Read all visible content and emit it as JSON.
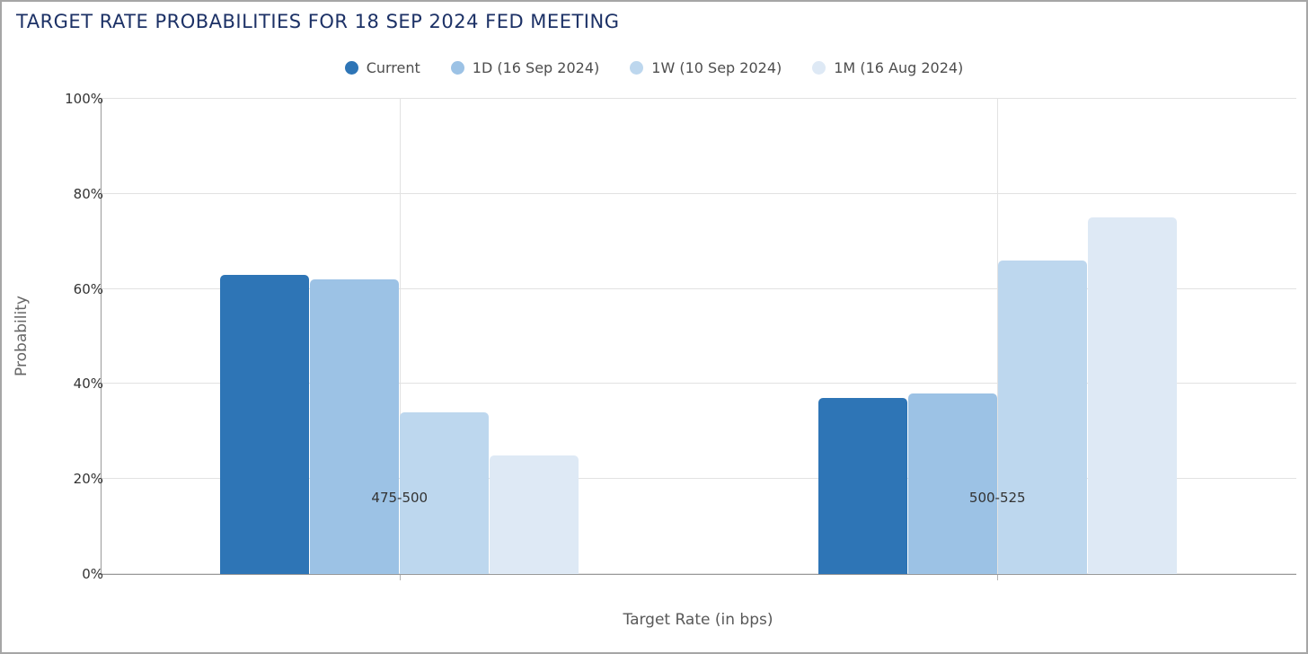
{
  "title": "TARGET RATE PROBABILITIES FOR 18 SEP 2024 FED MEETING",
  "chart_data": {
    "type": "bar",
    "title": "TARGET RATE PROBABILITIES FOR 18 SEP 2024 FED MEETING",
    "categories": [
      "475-500",
      "500-525"
    ],
    "series": [
      {
        "name": "Current",
        "color": "#2E75B6",
        "values": [
          63,
          37
        ]
      },
      {
        "name": "1D (16 Sep 2024)",
        "color": "#9CC2E5",
        "values": [
          62,
          38
        ]
      },
      {
        "name": "1W (10 Sep 2024)",
        "color": "#BDD7EE",
        "values": [
          34,
          66
        ]
      },
      {
        "name": "1M (16 Aug 2024)",
        "color": "#DEE9F5",
        "values": [
          25,
          75
        ]
      }
    ],
    "xlabel": "Target Rate (in bps)",
    "ylabel": "Probability",
    "ylim": [
      0,
      100
    ],
    "ytick_values": [
      0,
      20,
      40,
      60,
      80,
      100
    ],
    "ytick_labels": [
      "0%",
      "20%",
      "40%",
      "60%",
      "80%",
      "100%"
    ],
    "grid": true,
    "legend_position": "top-center"
  },
  "colors": {
    "title_text": "#1c3166",
    "legend_text": "#4d4d4d",
    "axis_tick_text": "#333333",
    "axis_title_text": "#595959",
    "gridline": "#e2e2e2",
    "axis_line": "#9a9a9a",
    "frame_border": "#a6a6a6",
    "background": "#ffffff"
  }
}
